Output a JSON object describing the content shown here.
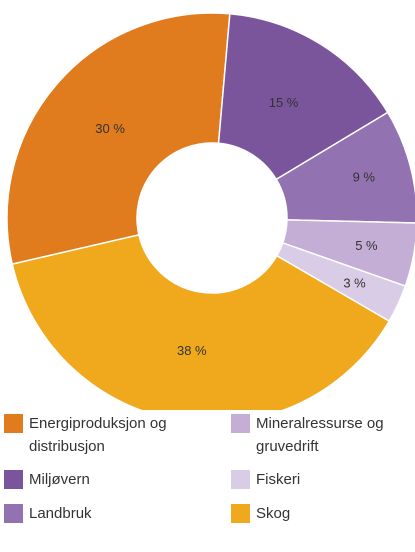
{
  "chart_data": {
    "type": "donut",
    "categories": [
      "Energiproduksjon og distribusjon",
      "Miljøvern",
      "Landbruk",
      "Mineralressurse og gruvedrift",
      "Fiskeri",
      "Skog"
    ],
    "values": [
      30,
      15,
      9,
      5,
      3,
      38
    ],
    "value_labels": [
      "30 %",
      "15 %",
      "9 %",
      "5 %",
      "3 %",
      "38 %"
    ],
    "colors": [
      "#e07b1e",
      "#7b559c",
      "#9272b0",
      "#c4aed6",
      "#d9cce6",
      "#f0a81c"
    ],
    "legend": "bottom"
  }
}
